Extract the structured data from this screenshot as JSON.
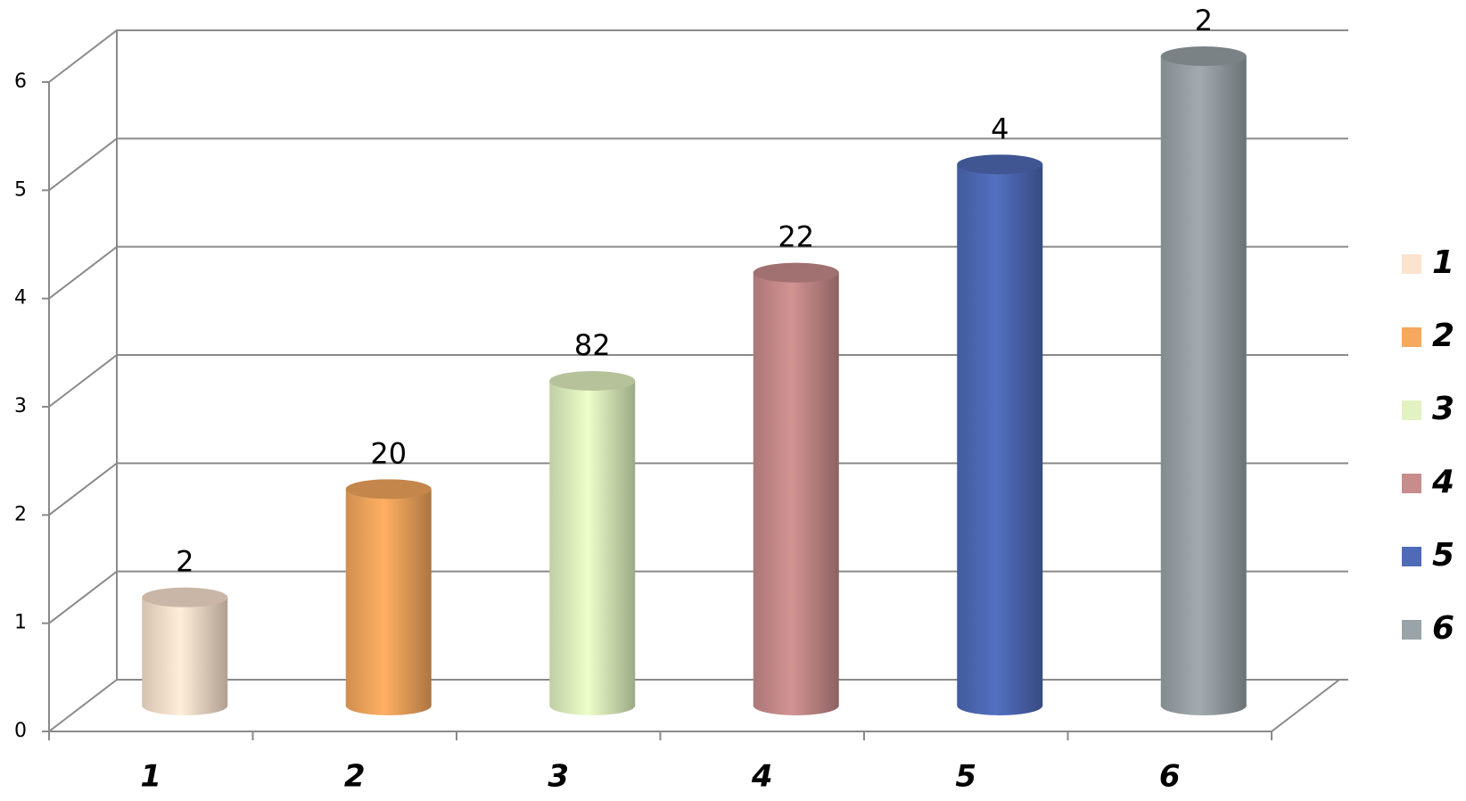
{
  "chart_data": {
    "type": "bar",
    "categories": [
      "1",
      "2",
      "3",
      "4",
      "5",
      "6"
    ],
    "values": [
      1,
      2,
      3,
      4,
      5,
      6
    ],
    "annotations": [
      "2",
      "20",
      "82",
      "22",
      "4",
      "2"
    ],
    "colors": [
      "#fbe3cf",
      "#f5a85e",
      "#e2f2c0",
      "#c98c8c",
      "#4f6bb8",
      "#9aa3a8"
    ],
    "ylim": [
      0,
      6
    ],
    "yticks": [
      0,
      1,
      2,
      3,
      4,
      5,
      6
    ],
    "grid": true,
    "legend": "right"
  }
}
